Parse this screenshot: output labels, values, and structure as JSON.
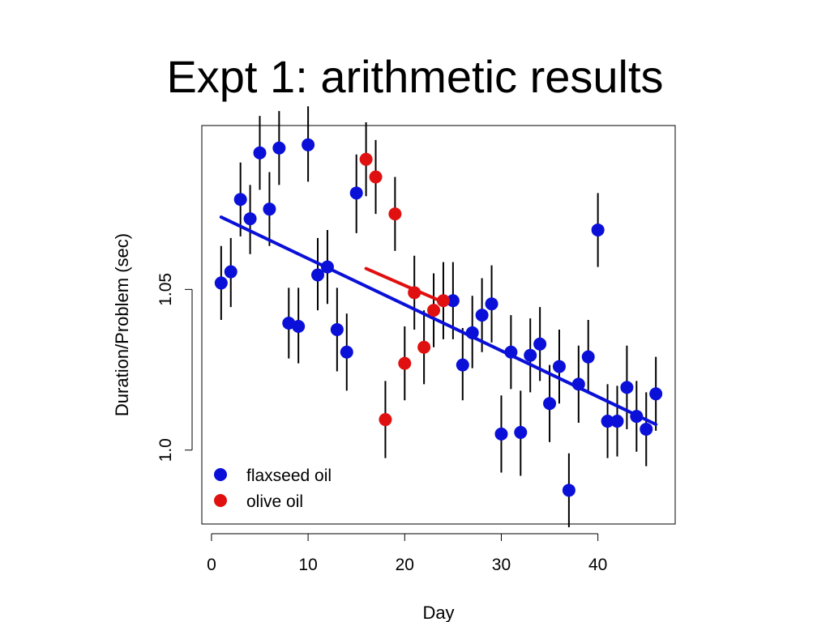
{
  "slide": {
    "title": "Expt 1: arithmetic results"
  },
  "chart_data": {
    "type": "scatter",
    "title": "",
    "xlabel": "Day",
    "ylabel": "Duration/Problem (sec)",
    "xlim": [
      -1,
      48
    ],
    "ylim": [
      0.977,
      1.101
    ],
    "xticks": [
      0,
      10,
      20,
      30,
      40
    ],
    "yticks": [
      1.0,
      1.05
    ],
    "ytick_labels": [
      "1.0",
      "1.05"
    ],
    "grid": false,
    "legend_position": "bottom-left",
    "colors": {
      "flaxseed": "#0a10d8",
      "olive": "#e01010",
      "errorbar": "#000000"
    },
    "series": [
      {
        "name": "flaxseed oil",
        "points": [
          {
            "x": 1,
            "y": 1.052,
            "lo": 1.0405,
            "hi": 1.0635
          },
          {
            "x": 2,
            "y": 1.0555,
            "lo": 1.0445,
            "hi": 1.066
          },
          {
            "x": 3,
            "y": 1.078,
            "lo": 1.0665,
            "hi": 1.0895
          },
          {
            "x": 4,
            "y": 1.072,
            "lo": 1.061,
            "hi": 1.0825
          },
          {
            "x": 5,
            "y": 1.0925,
            "lo": 1.081,
            "hi": 1.104
          },
          {
            "x": 6,
            "y": 1.075,
            "lo": 1.0635,
            "hi": 1.0865
          },
          {
            "x": 7,
            "y": 1.094,
            "lo": 1.0825,
            "hi": 1.1055
          },
          {
            "x": 8,
            "y": 1.0395,
            "lo": 1.0285,
            "hi": 1.0505
          },
          {
            "x": 9,
            "y": 1.0385,
            "lo": 1.027,
            "hi": 1.0505
          },
          {
            "x": 10,
            "y": 1.095,
            "lo": 1.0835,
            "hi": 1.107
          },
          {
            "x": 11,
            "y": 1.0545,
            "lo": 1.0435,
            "hi": 1.066
          },
          {
            "x": 12,
            "y": 1.057,
            "lo": 1.0455,
            "hi": 1.0685
          },
          {
            "x": 13,
            "y": 1.0375,
            "lo": 1.0245,
            "hi": 1.0505
          },
          {
            "x": 14,
            "y": 1.0305,
            "lo": 1.0185,
            "hi": 1.0425
          },
          {
            "x": 15,
            "y": 1.08,
            "lo": 1.0675,
            "hi": 1.092
          },
          {
            "x": 25,
            "y": 1.0465,
            "lo": 1.0345,
            "hi": 1.0585
          },
          {
            "x": 26,
            "y": 1.0265,
            "lo": 1.0155,
            "hi": 1.038
          },
          {
            "x": 27,
            "y": 1.0365,
            "lo": 1.0255,
            "hi": 1.048
          },
          {
            "x": 28,
            "y": 1.042,
            "lo": 1.0305,
            "hi": 1.0535
          },
          {
            "x": 29,
            "y": 1.0455,
            "lo": 1.0335,
            "hi": 1.0575
          },
          {
            "x": 30,
            "y": 1.005,
            "lo": 0.993,
            "hi": 1.017
          },
          {
            "x": 31,
            "y": 1.0305,
            "lo": 1.019,
            "hi": 1.042
          },
          {
            "x": 32,
            "y": 1.0055,
            "lo": 0.992,
            "hi": 1.0185
          },
          {
            "x": 33,
            "y": 1.0295,
            "lo": 1.018,
            "hi": 1.041
          },
          {
            "x": 34,
            "y": 1.033,
            "lo": 1.0215,
            "hi": 1.0445
          },
          {
            "x": 35,
            "y": 1.0145,
            "lo": 1.0025,
            "hi": 1.0265
          },
          {
            "x": 36,
            "y": 1.026,
            "lo": 1.0145,
            "hi": 1.0375
          },
          {
            "x": 37,
            "y": 0.9875,
            "lo": 0.976,
            "hi": 0.999
          },
          {
            "x": 38,
            "y": 1.0205,
            "lo": 1.0085,
            "hi": 1.0325
          },
          {
            "x": 39,
            "y": 1.029,
            "lo": 1.0175,
            "hi": 1.0405
          },
          {
            "x": 40,
            "y": 1.0685,
            "lo": 1.057,
            "hi": 1.08
          },
          {
            "x": 41,
            "y": 1.009,
            "lo": 0.9975,
            "hi": 1.0205
          },
          {
            "x": 42,
            "y": 1.009,
            "lo": 0.998,
            "hi": 1.02
          },
          {
            "x": 43,
            "y": 1.0195,
            "lo": 1.0065,
            "hi": 1.0325
          },
          {
            "x": 44,
            "y": 1.0105,
            "lo": 0.9995,
            "hi": 1.0215
          },
          {
            "x": 45,
            "y": 1.0065,
            "lo": 0.995,
            "hi": 1.018
          },
          {
            "x": 46,
            "y": 1.0175,
            "lo": 1.006,
            "hi": 1.029
          }
        ],
        "fit": {
          "x": [
            1,
            46
          ],
          "y": [
            1.0725,
            1.008
          ]
        }
      },
      {
        "name": "olive oil",
        "points": [
          {
            "x": 16,
            "y": 1.0905,
            "lo": 1.079,
            "hi": 1.102
          },
          {
            "x": 17,
            "y": 1.085,
            "lo": 1.0735,
            "hi": 1.0965
          },
          {
            "x": 18,
            "y": 1.0095,
            "lo": 0.9975,
            "hi": 1.0215
          },
          {
            "x": 19,
            "y": 1.0735,
            "lo": 1.062,
            "hi": 1.085
          },
          {
            "x": 20,
            "y": 1.027,
            "lo": 1.0155,
            "hi": 1.0385
          },
          {
            "x": 21,
            "y": 1.049,
            "lo": 1.0375,
            "hi": 1.0605
          },
          {
            "x": 22,
            "y": 1.032,
            "lo": 1.0205,
            "hi": 1.0435
          },
          {
            "x": 23,
            "y": 1.0435,
            "lo": 1.032,
            "hi": 1.055
          },
          {
            "x": 24,
            "y": 1.0465,
            "lo": 1.0345,
            "hi": 1.0585
          }
        ],
        "fit": {
          "x": [
            16,
            24
          ],
          "y": [
            1.0565,
            1.046
          ]
        }
      }
    ]
  }
}
